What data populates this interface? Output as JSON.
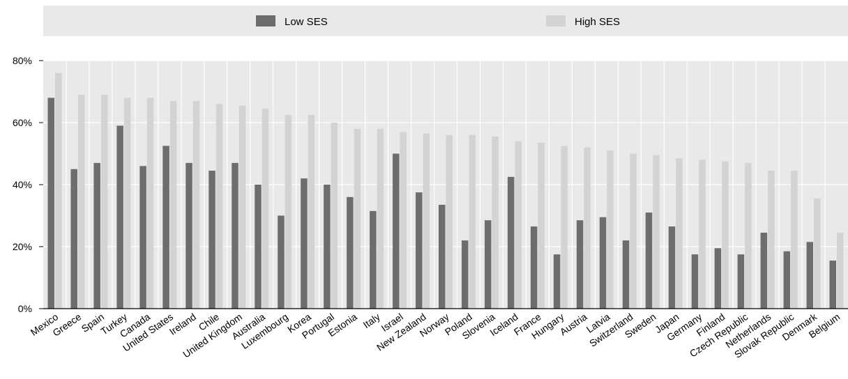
{
  "chart_data": {
    "type": "bar",
    "categories": [
      "Mexico",
      "Greece",
      "Spain",
      "Turkey",
      "Canada",
      "United States",
      "Ireland",
      "Chile",
      "United Kingdom",
      "Australia",
      "Luxembourg",
      "Korea",
      "Portugal",
      "Estonia",
      "Italy",
      "Israel",
      "New Zealand",
      "Norway",
      "Poland",
      "Slovenia",
      "Iceland",
      "France",
      "Hungary",
      "Austria",
      "Latvia",
      "Switzerland",
      "Sweden",
      "Japan",
      "Germany",
      "Finland",
      "Czech Republic",
      "Netherlands",
      "Slovak Republic",
      "Denmark",
      "Belgium"
    ],
    "series": [
      {
        "name": "Low SES",
        "color": "#6d6d6d",
        "values": [
          68,
          45,
          47,
          59,
          46,
          52.5,
          47,
          44.5,
          47,
          40,
          30,
          42,
          40,
          36,
          31.5,
          50,
          37.5,
          33.5,
          22,
          28.5,
          42.5,
          26.5,
          17.5,
          28.5,
          29.5,
          22,
          31,
          26.5,
          17.5,
          19.5,
          17.5,
          24.5,
          18.5,
          21.5,
          15.5
        ]
      },
      {
        "name": "High SES",
        "color": "#d3d3d3",
        "values": [
          76,
          69,
          69,
          68,
          68,
          67,
          67,
          66,
          65.5,
          64.5,
          62.5,
          62.5,
          60,
          58,
          58,
          57,
          56.5,
          56,
          56,
          55.5,
          54,
          53.5,
          52.5,
          52,
          51,
          50,
          49.5,
          48.5,
          48,
          47.5,
          47,
          44.5,
          44.5,
          35.5,
          24.5
        ]
      }
    ],
    "ylim": [
      0,
      80
    ],
    "yticks": [
      "0%",
      "20%",
      "40%",
      "60%",
      "80%"
    ],
    "ytick_values": [
      0,
      20,
      40,
      60,
      80
    ],
    "legend_position": "top",
    "grid": true,
    "background": "#e9e9e9"
  }
}
